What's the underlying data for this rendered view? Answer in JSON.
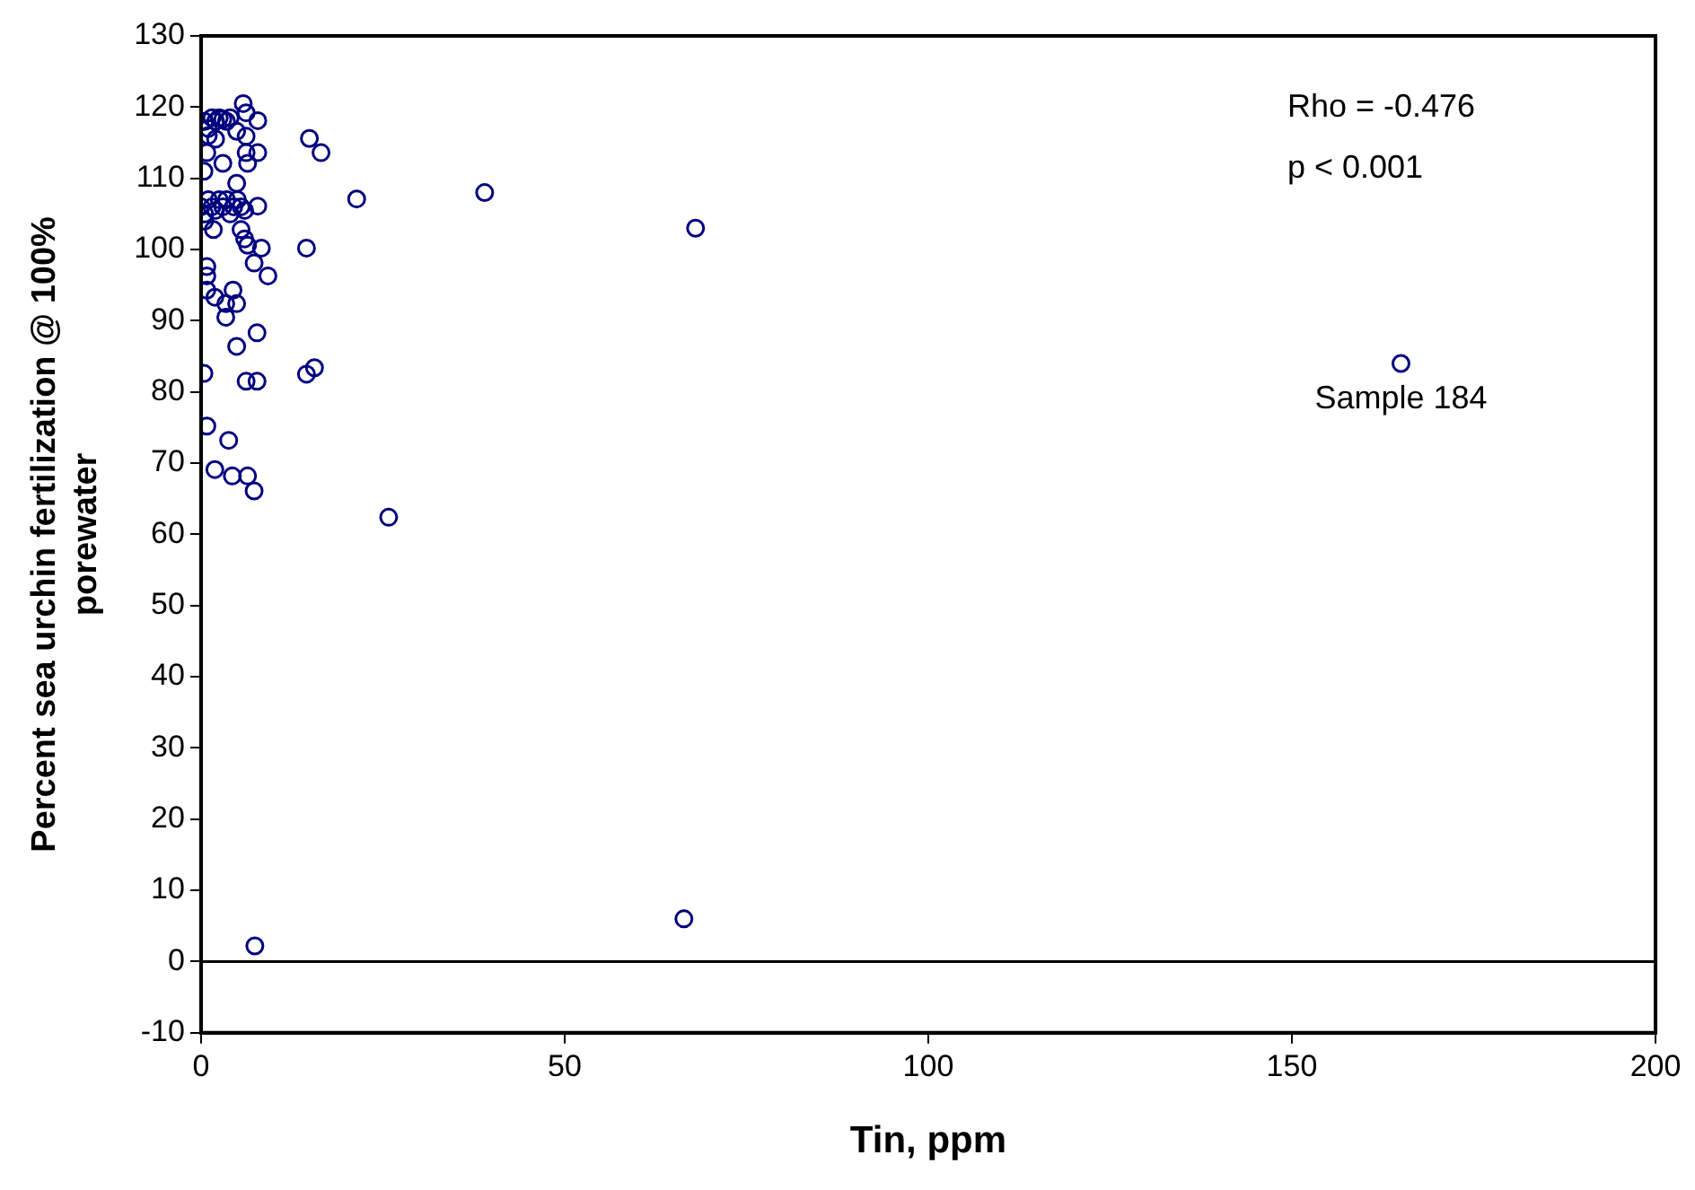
{
  "chart_data": {
    "type": "scatter",
    "xlabel": "Tin, ppm",
    "ylabel": "Percent sea urchin fertilization @ 100%\nporewater",
    "xlim": [
      0,
      200
    ],
    "xticks": [
      0,
      50,
      100,
      150,
      200
    ],
    "ylim": [
      -10,
      130
    ],
    "yticks": [
      -10,
      0,
      10,
      20,
      30,
      40,
      50,
      60,
      70,
      80,
      90,
      100,
      110,
      120,
      130
    ],
    "grid": false,
    "legend": false,
    "marker": "circle",
    "ref_lines": [
      {
        "axis": "y",
        "value": 0,
        "color": "#000000"
      }
    ],
    "annotations": [
      "Rho = -0.476",
      "p < 0.001",
      {
        "text": "Sample 184",
        "x": 165,
        "y": 84
      }
    ],
    "series": [
      {
        "color": "#000080",
        "x": [
          7.4,
          66.4,
          0.4,
          4.9,
          7.7,
          6.2,
          7.7,
          14.5,
          15.6,
          0.8,
          3.8,
          1.9,
          4.3,
          6.4,
          7.3,
          25.8,
          165,
          68,
          39,
          5.8,
          6.2,
          7.8,
          14.9,
          16.5,
          21.4,
          14.5,
          4.9,
          7.8,
          6.2,
          6.2,
          7.8,
          6.4,
          3.0,
          0.4,
          0.8,
          4.9,
          0.5,
          1,
          1.5,
          2,
          2.5,
          3,
          3.5,
          4,
          1,
          2,
          0,
          0.5,
          1,
          1.5,
          2,
          2.5,
          3,
          3.5,
          4,
          4.5,
          5,
          5.5,
          6,
          0.5,
          1.7,
          5.5,
          6.0,
          6.4,
          8.3,
          7.3,
          9.2,
          0.8,
          0.8,
          0.8,
          1.9,
          4.4,
          4.9,
          3.4,
          3.4
        ],
        "values": [
          2.2,
          6.0,
          82.6,
          86.4,
          88.3,
          81.5,
          81.5,
          82.5,
          83.4,
          75.2,
          73.2,
          69.1,
          68.2,
          68.2,
          66.1,
          62.4,
          84,
          103,
          108,
          120.5,
          119.2,
          118.1,
          115.6,
          113.6,
          107.1,
          100.2,
          109.3,
          106.1,
          115.9,
          113.6,
          113.6,
          112.1,
          112.1,
          111.0,
          113.6,
          116.6,
          118,
          117,
          118.5,
          118,
          118.5,
          118.3,
          118,
          118.5,
          116,
          115.5,
          106,
          105,
          107,
          106,
          105.5,
          107,
          106,
          107,
          105,
          106,
          107,
          106,
          105.5,
          104,
          102.8,
          102.8,
          101.5,
          100.6,
          100.2,
          98.1,
          96.3,
          97.6,
          96.3,
          94.3,
          93.3,
          94.3,
          92.4,
          92.4,
          90.5
        ]
      }
    ]
  }
}
